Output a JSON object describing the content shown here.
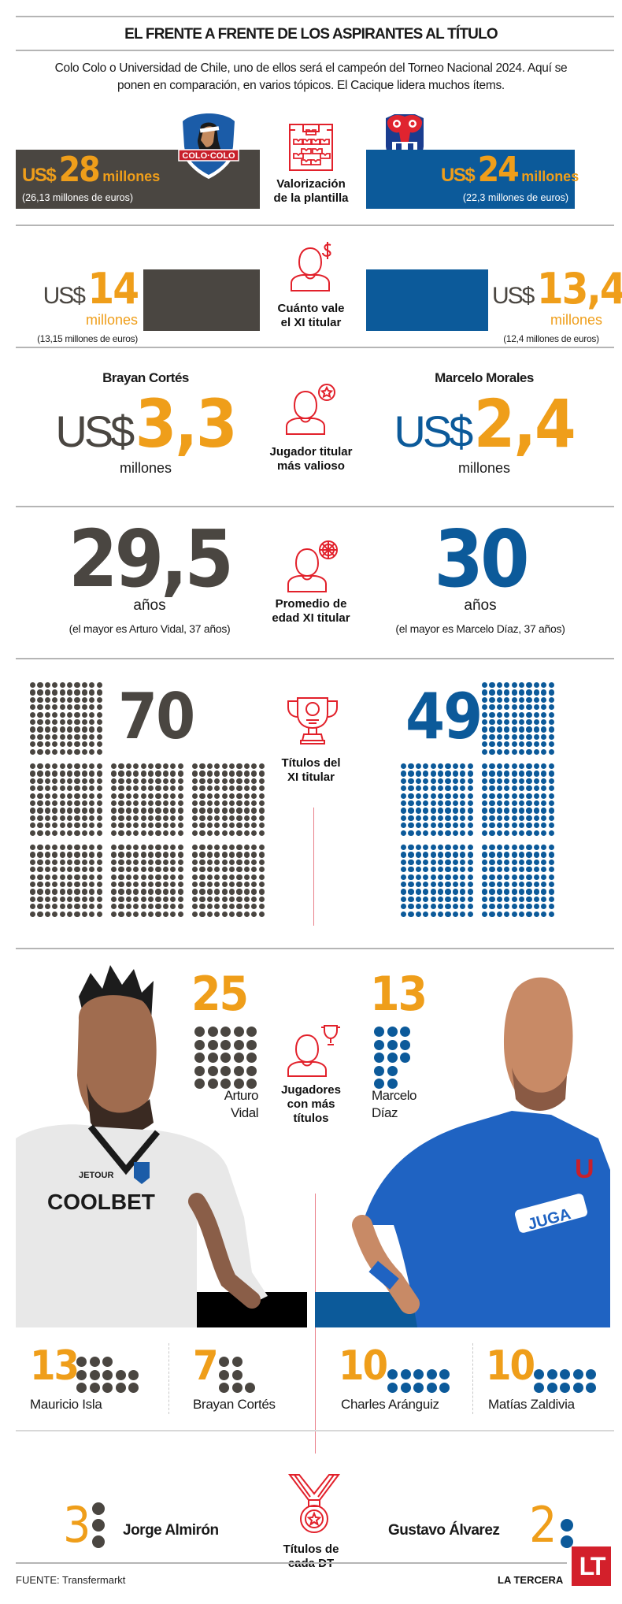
{
  "header": {
    "title": "EL FRENTE A FRENTE DE LOS ASPIRANTES AL TÍTULO",
    "intro": "Colo Colo o Universidad de Chile, uno de ellos será el campeón del Torneo Nacional 2024. Aquí se ponen en comparación, en varios tópicos. El Cacique lidera muchos ítems."
  },
  "colors": {
    "colo_colo": "#4a4641",
    "u_chile": "#0c5a9a",
    "highlight": "#ef9e1a",
    "icon": "#e2212b"
  },
  "teams": {
    "left": {
      "name": "Colo Colo",
      "logo_text": "COLO·COLO"
    },
    "right": {
      "name": "Universidad de Chile",
      "logo_text": "U"
    }
  },
  "sections": {
    "squad_value": {
      "label": "Valorización de la plantilla",
      "label_line1": "Valorización",
      "label_line2": "de la plantilla",
      "left": {
        "currency": "US$",
        "value": "28",
        "unit": "millones",
        "euros": "(26,13 millones de euros)"
      },
      "right": {
        "currency": "US$",
        "value": "24",
        "unit": "millones",
        "euros": "(22,3 millones de euros)"
      }
    },
    "xi_value": {
      "label_line1": "Cuánto vale",
      "label_line2": "el XI titular",
      "left": {
        "currency": "US$",
        "value": "14",
        "unit": "millones",
        "euros": "(13,15 millones de euros)"
      },
      "right": {
        "currency": "US$",
        "value": "13,4",
        "unit": "millones",
        "euros": "(12,4 millones de euros)"
      }
    },
    "most_valuable": {
      "label_line1": "Jugador titular",
      "label_line2": "más valioso",
      "left": {
        "player": "Brayan Cortés",
        "currency": "US$",
        "value": "3,3",
        "unit": "millones"
      },
      "right": {
        "player": "Marcelo Morales",
        "currency": "US$",
        "value": "2,4",
        "unit": "millones"
      }
    },
    "average_age": {
      "label_line1": "Promedio de",
      "label_line2": "edad XI titular",
      "left": {
        "value": "29,5",
        "unit": "años",
        "note": "(el mayor es Arturo Vidal, 37 años)"
      },
      "right": {
        "value": "30",
        "unit": "años",
        "note": "(el mayor es Marcelo Díaz, 37 años)"
      }
    },
    "xi_titles": {
      "label_line1": "Títulos del",
      "label_line2": "XI titular",
      "left": {
        "value": "70"
      },
      "right": {
        "value": "49"
      }
    },
    "top_players": {
      "label_line1": "Jugadores",
      "label_line2": "con más",
      "label_line3": "títulos",
      "left": {
        "value": "25",
        "name_line1": "Arturo",
        "name_line2": "Vidal"
      },
      "right": {
        "value": "13",
        "name_line1": "Marcelo",
        "name_line2": "Díaz"
      },
      "others": [
        {
          "value": "13",
          "name": "Mauricio Isla",
          "team": "left"
        },
        {
          "value": "7",
          "name": "Brayan Cortés",
          "team": "left"
        },
        {
          "value": "10",
          "name": "Charles Aránguiz",
          "team": "right"
        },
        {
          "value": "10",
          "name": "Matías Zaldivia",
          "team": "right"
        }
      ]
    },
    "coach_titles": {
      "label_line1": "Títulos de",
      "label_line2": "cada DT",
      "left": {
        "value": "3",
        "name": "Jorge Almirón"
      },
      "right": {
        "value": "2",
        "name": "Gustavo Álvarez"
      }
    }
  },
  "footer": {
    "source": "FUENTE: Transfermarkt",
    "brand": "LA TERCERA",
    "logo": "LT"
  },
  "chart_data": {
    "type": "table",
    "title": "EL FRENTE A FRENTE DE LOS ASPIRANTES AL TÍTULO",
    "categories": [
      "Valorización de la plantilla (US$ millones)",
      "Cuánto vale el XI titular (US$ millones)",
      "Jugador titular más valioso (US$ millones)",
      "Promedio de edad XI titular (años)",
      "Títulos del XI titular",
      "Jugador con más títulos",
      "Títulos de cada DT"
    ],
    "series": [
      {
        "name": "Colo Colo",
        "values": [
          28,
          14,
          3.3,
          29.5,
          70,
          25,
          3
        ]
      },
      {
        "name": "Universidad de Chile",
        "values": [
          24,
          13.4,
          2.4,
          30,
          49,
          13,
          2
        ]
      }
    ],
    "euros": {
      "Colo Colo": [
        26.13,
        13.15
      ],
      "Universidad de Chile": [
        22.3,
        12.4
      ]
    },
    "players_titles": [
      {
        "name": "Arturo Vidal",
        "team": "Colo Colo",
        "titles": 25
      },
      {
        "name": "Mauricio Isla",
        "team": "Colo Colo",
        "titles": 13
      },
      {
        "name": "Brayan Cortés",
        "team": "Colo Colo",
        "titles": 7
      },
      {
        "name": "Marcelo Díaz",
        "team": "Universidad de Chile",
        "titles": 13
      },
      {
        "name": "Charles Aránguiz",
        "team": "Universidad de Chile",
        "titles": 10
      },
      {
        "name": "Matías Zaldivia",
        "team": "Universidad de Chile",
        "titles": 10
      }
    ],
    "coaches": [
      {
        "name": "Jorge Almirón",
        "team": "Colo Colo",
        "titles": 3
      },
      {
        "name": "Gustavo Álvarez",
        "team": "Universidad de Chile",
        "titles": 2
      }
    ],
    "most_valuable": [
      {
        "name": "Brayan Cortés",
        "team": "Colo Colo",
        "value_musd": 3.3
      },
      {
        "name": "Marcelo Morales",
        "team": "Universidad de Chile",
        "value_musd": 2.4
      }
    ],
    "source": "Transfermarkt"
  }
}
